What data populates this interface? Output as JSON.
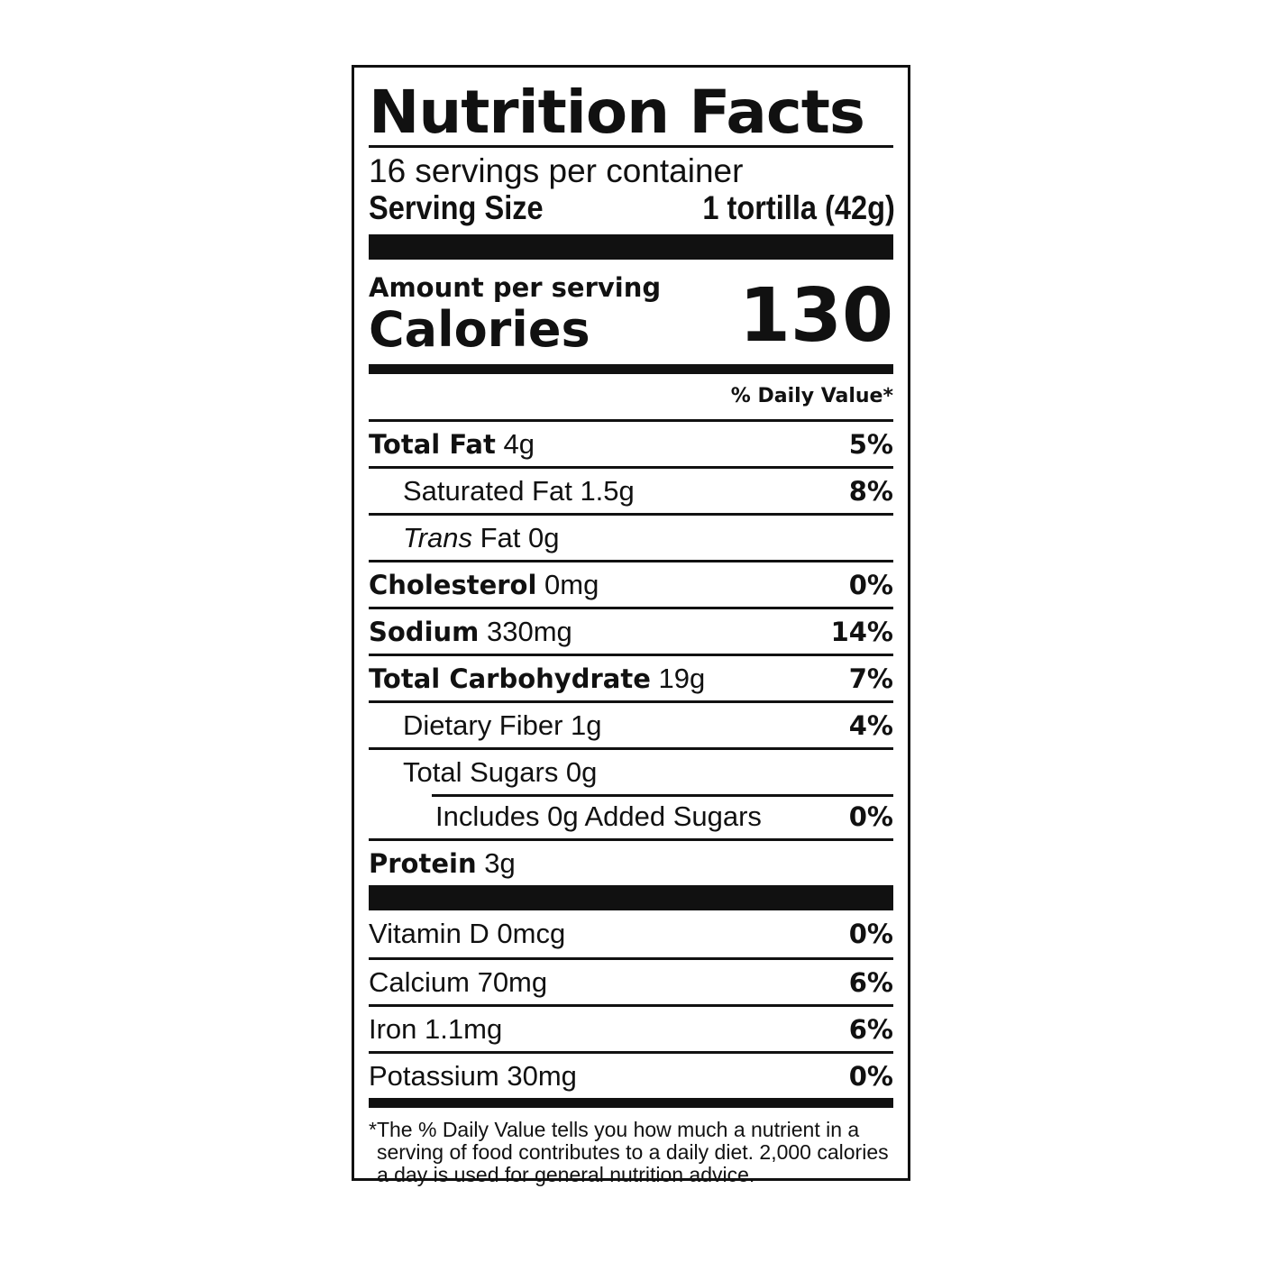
{
  "title": "Nutrition Facts",
  "servings": "16 servings per container",
  "serving_size_label": "Serving Size",
  "serving_size_value": "1 tortilla (42g)",
  "amount_per_serving": "Amount per serving",
  "calories_label": "Calories",
  "calories_value": "130",
  "dv_header": "% Daily Value*",
  "nutrients": [
    {
      "name": "Total Fat",
      "amount": "4g",
      "dv": "5%"
    },
    {
      "name": "Saturated Fat 1.5g",
      "dv": "8%"
    },
    {
      "name_italic": "Trans",
      "name": " Fat 0g",
      "dv": ""
    },
    {
      "name": "Cholesterol",
      "amount": "0mg",
      "dv": "0%"
    },
    {
      "name": "Sodium",
      "amount": "330mg",
      "dv": "14%"
    },
    {
      "name": "Total Carbohydrate",
      "amount": "19g",
      "dv": "7%"
    },
    {
      "name": "Dietary Fiber 1g",
      "dv": "4%"
    },
    {
      "name": "Total Sugars 0g",
      "dv": ""
    },
    {
      "name": "Includes 0g Added Sugars",
      "dv": "0%"
    },
    {
      "name": "Protein",
      "amount": "3g",
      "dv": ""
    }
  ],
  "vitamins": [
    {
      "name": "Vitamin D 0mcg",
      "dv": "0%"
    },
    {
      "name": "Calcium 70mg",
      "dv": "6%"
    },
    {
      "name": "Iron 1.1mg",
      "dv": "6%"
    },
    {
      "name": "Potassium 30mg",
      "dv": "0%"
    }
  ],
  "footnote_star": "*",
  "footnote": "The % Daily Value tells you how much a nutrient in a serving of food contributes to a daily diet. 2,000 calories a day is used for general nutrition advice."
}
